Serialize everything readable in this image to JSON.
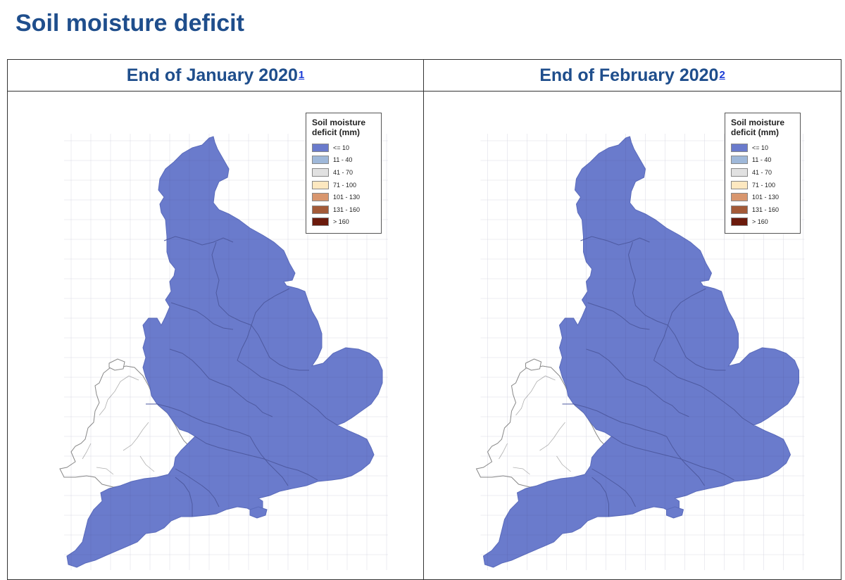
{
  "page": {
    "title": "Soil moisture deficit"
  },
  "colors": {
    "fill": "#6a7bcc",
    "fill_stroke": "#5a6bbb",
    "wales_stroke": "#888888",
    "title": "#1f4e8c"
  },
  "legend": {
    "title": "Soil moisture deficit (mm)",
    "classes": [
      {
        "label": "<= 10",
        "color": "#6a7bcc"
      },
      {
        "label": "11 - 40",
        "color": "#9fb8d9"
      },
      {
        "label": "41 - 70",
        "color": "#e1e1e1"
      },
      {
        "label": "71 - 100",
        "color": "#fde8c0"
      },
      {
        "label": "101 - 130",
        "color": "#d8966e"
      },
      {
        "label": "131 - 160",
        "color": "#a35a38"
      },
      {
        "label": "> 160",
        "color": "#6b1a0c"
      }
    ]
  },
  "panels": [
    {
      "title": "End of January 2020",
      "footnote": "1",
      "england_class": "<= 10"
    },
    {
      "title": "End of February 2020",
      "footnote": "2",
      "england_class": "<= 10"
    }
  ]
}
